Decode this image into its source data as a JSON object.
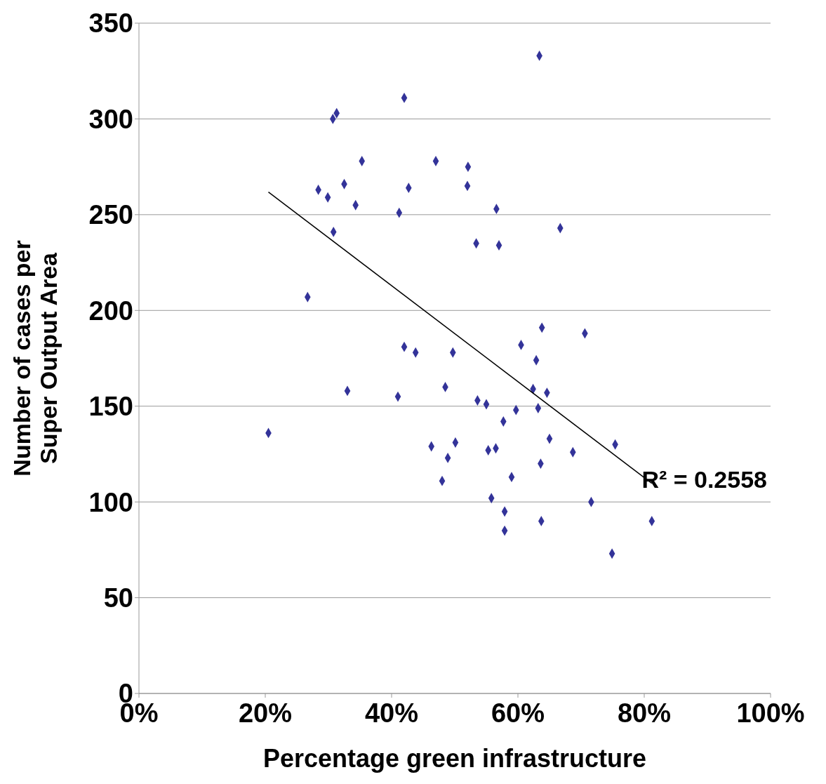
{
  "chart_data": {
    "type": "scatter",
    "xlabel": "Percentage green infrastructure",
    "ylabel": "Number of cases per Super Output Area",
    "xlim": [
      0,
      100
    ],
    "xticks": [
      {
        "value": 0,
        "label": "0%"
      },
      {
        "value": 20,
        "label": "20%"
      },
      {
        "value": 40,
        "label": "40%"
      },
      {
        "value": 60,
        "label": "60%"
      },
      {
        "value": 80,
        "label": "80%"
      },
      {
        "value": 100,
        "label": "100%"
      }
    ],
    "ylim": [
      0,
      350
    ],
    "yticks": [
      0,
      50,
      100,
      150,
      200,
      250,
      300,
      350
    ],
    "grid": "y",
    "marker": "diamond",
    "series": [
      {
        "color": "#333399",
        "x": [
          63.4,
          42.0,
          31.3,
          30.7,
          35.3,
          47.0,
          52.1,
          32.5,
          28.4,
          42.7,
          52.0,
          29.9,
          34.3,
          41.2,
          56.6,
          66.7,
          30.8,
          53.4,
          57.0,
          26.7,
          63.8,
          70.6,
          60.5,
          42.0,
          43.8,
          49.7,
          62.9,
          48.5,
          33.0,
          62.4,
          64.6,
          41.0,
          53.6,
          55.0,
          63.2,
          59.7,
          57.7,
          20.5,
          65.0,
          75.4,
          50.1,
          46.3,
          56.5,
          55.3,
          68.7,
          48.9,
          63.6,
          48.0,
          59.0,
          55.8,
          71.6,
          57.9,
          63.7,
          81.2,
          57.9,
          74.9
        ],
        "values": [
          333,
          311,
          303,
          300,
          278,
          278,
          275,
          266,
          263,
          264,
          265,
          259,
          255,
          251,
          253,
          243,
          241,
          235,
          234,
          207,
          191,
          188,
          182,
          181,
          178,
          178,
          174,
          160,
          158,
          159,
          157,
          155,
          153,
          151,
          149,
          148,
          142,
          136,
          133,
          130,
          131,
          129,
          128,
          127,
          126,
          123,
          120,
          111,
          113,
          102,
          100,
          95,
          90,
          90,
          85,
          73
        ]
      },
      {
        "type": "line",
        "color": "#000000",
        "line_style": "solid",
        "marker": "none",
        "x": [
          20.5,
          81.2
        ],
        "values": [
          261.8,
          109.7
        ]
      }
    ],
    "annotations": [
      "R² = 0.2558"
    ]
  }
}
